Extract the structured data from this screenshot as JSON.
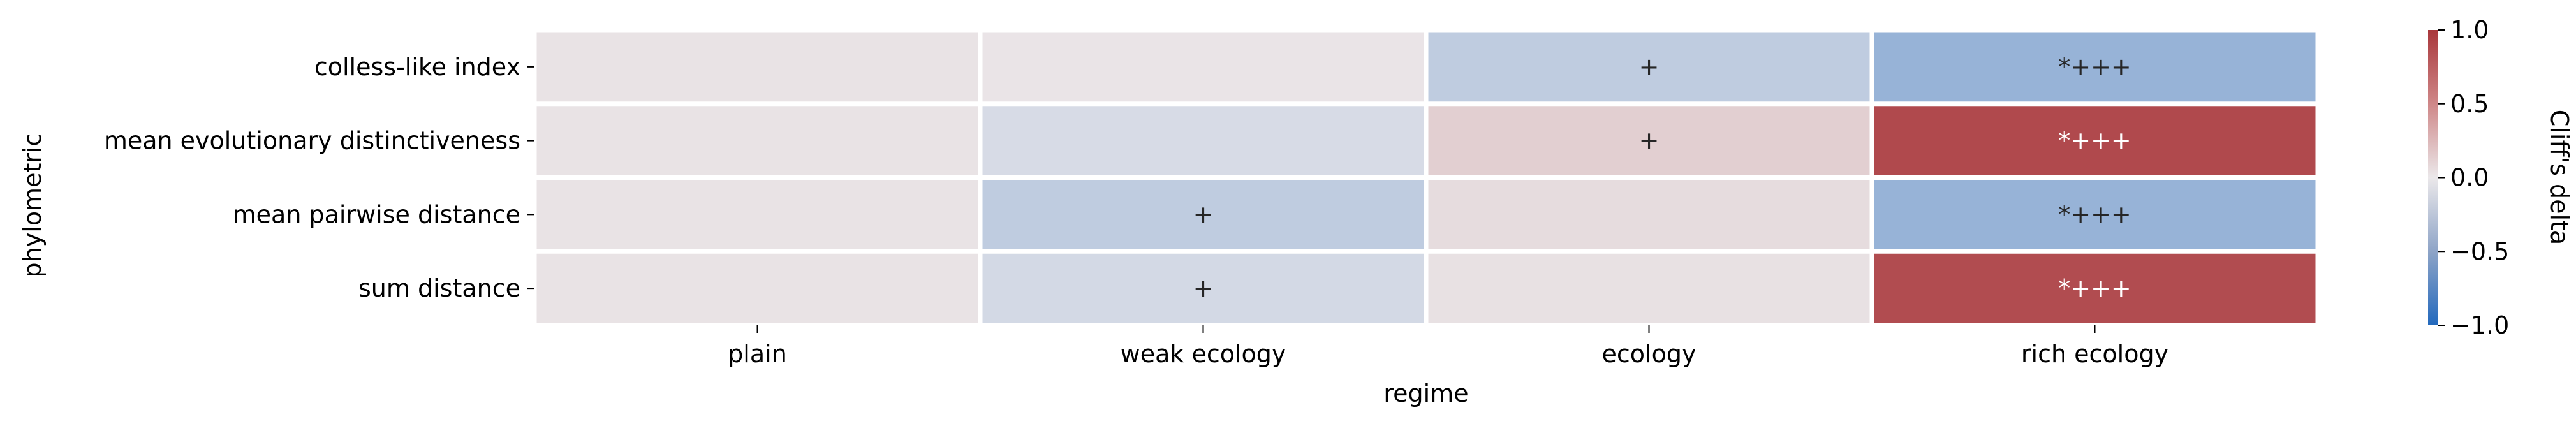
{
  "chart_data": {
    "type": "heatmap",
    "title": "",
    "xlabel": "regime",
    "ylabel": "phylometric",
    "x_categories": [
      "plain",
      "weak ecology",
      "ecology",
      "rich ecology"
    ],
    "y_categories": [
      "colless-like index",
      "mean evolutionary distinctiveness",
      "mean pairwise distance",
      "sum distance"
    ],
    "values": [
      [
        0.03,
        0.02,
        -0.22,
        -0.42
      ],
      [
        0.03,
        -0.1,
        0.14,
        0.9
      ],
      [
        0.03,
        -0.22,
        0.07,
        -0.42
      ],
      [
        0.03,
        -0.12,
        0.04,
        0.88
      ]
    ],
    "annotations": [
      [
        "",
        "",
        "+",
        "*+++"
      ],
      [
        "",
        "",
        "+",
        "*+++"
      ],
      [
        "",
        "+",
        "",
        "*+++"
      ],
      [
        "",
        "+",
        "",
        "*+++"
      ]
    ],
    "colorbar": {
      "label": "Cliff's delta",
      "vmin": -1.0,
      "vmax": 1.0,
      "ticks": [
        -1.0,
        -0.5,
        0.0,
        0.5,
        1.0
      ],
      "tick_labels": [
        "−1.0",
        "−0.5",
        "0.0",
        "0.5",
        "1.0"
      ],
      "colormap": "vlag",
      "low_color": "#2369bd",
      "mid_color": "#ebe8ea",
      "high_color": "#a9373b"
    },
    "grid": false,
    "cell_border_color": "#ffffff"
  }
}
